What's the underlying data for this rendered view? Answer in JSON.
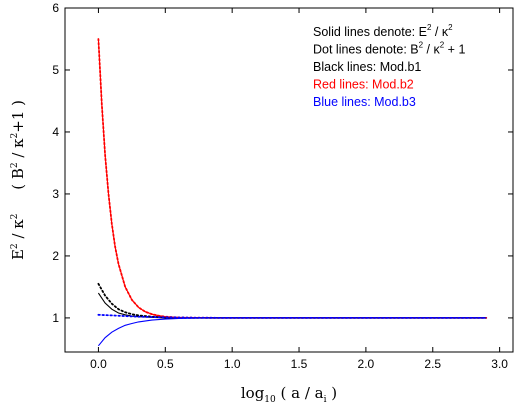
{
  "chart_data": {
    "type": "line",
    "xlabel": {
      "main": "log",
      "sub": "10",
      "rest": " ( a / a",
      "sub2": "i",
      "close": " )"
    },
    "ylabel": {
      "e": "E",
      "sup1": "2",
      "mid": " / κ",
      "sup2": "2",
      "gap": "     ( B",
      "sup3": "2",
      "mid2": " / κ",
      "sup4": "2",
      "tail": "+1 )"
    },
    "xlim": [
      -0.25,
      3.1
    ],
    "ylim": [
      0.45,
      6
    ],
    "x_ticks": [
      "0.0",
      "0.5",
      "1.0",
      "1.5",
      "2.0",
      "2.5",
      "3.0"
    ],
    "y_ticks": [
      "1",
      "2",
      "3",
      "4",
      "5",
      "6"
    ],
    "legend": [
      {
        "pre": "Solid lines denote:  E",
        "sup_a": "2",
        "mid": " / κ",
        "sup_b": "2",
        "post": "",
        "color": "#000000"
      },
      {
        "pre": "Dot  lines denote:  B",
        "sup_a": "2",
        "mid": " / κ",
        "sup_b": "2",
        "post": " + 1",
        "color": "#000000"
      },
      {
        "pre": "Black lines: Mod.b1",
        "sup_a": "",
        "mid": "",
        "sup_b": "",
        "post": "",
        "color": "#000000"
      },
      {
        "pre": "Red   lines: Mod.b2",
        "sup_a": "",
        "mid": "",
        "sup_b": "",
        "post": "",
        "color": "#ff0000"
      },
      {
        "pre": "Blue  lines: Mod.b3",
        "sup_a": "",
        "mid": "",
        "sup_b": "",
        "post": "",
        "color": "#0000ff"
      }
    ],
    "series": [
      {
        "model": "Mod.b1",
        "color": "#000000",
        "style": "solid",
        "x": [
          0.0,
          0.05,
          0.1,
          0.15,
          0.2,
          0.25,
          0.3,
          0.4,
          0.5,
          0.6,
          0.7,
          0.8,
          1.0,
          1.5,
          2.0,
          2.5,
          2.9
        ],
        "y": [
          1.4,
          1.24,
          1.14,
          1.08,
          1.05,
          1.03,
          1.02,
          1.01,
          1.0,
          1.0,
          1.0,
          1.0,
          1.0,
          1.0,
          1.0,
          1.0,
          1.0
        ]
      },
      {
        "model": "Mod.b1",
        "color": "#000000",
        "style": "dotted",
        "x": [
          0.0,
          0.05,
          0.1,
          0.15,
          0.2,
          0.25,
          0.3,
          0.4,
          0.5,
          0.6,
          0.7,
          0.8,
          1.0,
          1.5,
          2.0,
          2.5,
          2.9
        ],
        "y": [
          1.55,
          1.36,
          1.23,
          1.14,
          1.09,
          1.06,
          1.04,
          1.02,
          1.01,
          1.0,
          1.0,
          1.0,
          1.0,
          1.0,
          1.0,
          1.0,
          1.0
        ]
      },
      {
        "model": "Mod.b2",
        "color": "#ff0000",
        "style": "solid",
        "x": [
          0.0,
          0.025,
          0.05,
          0.075,
          0.1,
          0.125,
          0.15,
          0.2,
          0.25,
          0.3,
          0.35,
          0.4,
          0.45,
          0.5,
          0.6,
          0.7,
          0.8,
          0.9,
          1.0,
          1.5,
          2.0,
          2.5,
          2.9
        ],
        "y": [
          5.5,
          4.45,
          3.63,
          3.0,
          2.52,
          2.15,
          1.87,
          1.5,
          1.29,
          1.17,
          1.1,
          1.06,
          1.035,
          1.02,
          1.007,
          1.003,
          1.001,
          1.0,
          1.0,
          1.0,
          1.0,
          1.0,
          1.0
        ]
      },
      {
        "model": "Mod.b2",
        "color": "#ff0000",
        "style": "dotted",
        "x": [
          0.0,
          0.025,
          0.05,
          0.075,
          0.1,
          0.125,
          0.15,
          0.2,
          0.25,
          0.3,
          0.35,
          0.4,
          0.45,
          0.5,
          0.6,
          0.7,
          0.8,
          0.9,
          1.0,
          1.5,
          2.0,
          2.5,
          2.9
        ],
        "y": [
          5.5,
          4.45,
          3.63,
          3.0,
          2.52,
          2.15,
          1.87,
          1.5,
          1.29,
          1.17,
          1.1,
          1.06,
          1.035,
          1.02,
          1.007,
          1.003,
          1.001,
          1.0,
          1.0,
          1.0,
          1.0,
          1.0,
          1.0
        ]
      },
      {
        "model": "Mod.b3",
        "color": "#0000ff",
        "style": "solid",
        "x": [
          0.0,
          0.05,
          0.1,
          0.15,
          0.2,
          0.25,
          0.3,
          0.4,
          0.5,
          0.6,
          0.7,
          0.8,
          1.0,
          1.5,
          2.0,
          2.5,
          2.9
        ],
        "y": [
          0.55,
          0.68,
          0.77,
          0.83,
          0.88,
          0.91,
          0.935,
          0.965,
          0.98,
          0.99,
          0.995,
          0.998,
          1.0,
          1.0,
          1.0,
          1.0,
          1.0
        ]
      },
      {
        "model": "Mod.b3",
        "color": "#0000ff",
        "style": "dotted",
        "x": [
          0.0,
          0.1,
          0.2,
          0.3,
          0.4,
          0.5,
          0.6,
          0.7,
          0.8,
          1.0,
          1.5,
          2.0,
          2.5,
          2.9
        ],
        "y": [
          1.05,
          1.04,
          1.03,
          1.02,
          1.015,
          1.01,
          1.006,
          1.004,
          1.002,
          1.0,
          1.0,
          1.0,
          1.0,
          1.0
        ]
      }
    ]
  }
}
